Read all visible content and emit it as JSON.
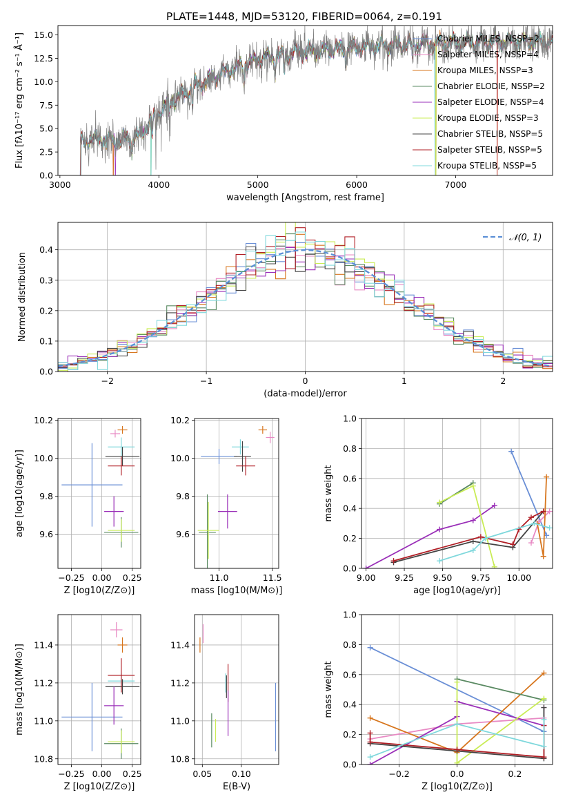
{
  "figure_title": "PLATE=1448, MJD=53120, FIBERID=0064, z=0.191",
  "chart_data": [
    {
      "id": "spectrum",
      "type": "line",
      "title": "PLATE=1448, MJD=53120, FIBERID=0064, z=0.191",
      "xlabel": "wavelength [Angstrom, rest frame]",
      "ylabel": "Flux [fλ10⁻¹⁷ erg cm⁻² s⁻¹ Å⁻¹]",
      "xlim": [
        2980,
        7980
      ],
      "ylim": [
        0,
        16
      ],
      "xticks": [
        3000,
        4000,
        5000,
        6000,
        7000
      ],
      "yticks": [
        0.0,
        2.5,
        5.0,
        7.5,
        10.0,
        12.5,
        15.0
      ],
      "grid": false,
      "legend_position": "top-right",
      "continuum_knots": {
        "x": [
          3200,
          3300,
          3600,
          3800,
          3950,
          4100,
          4400,
          4700,
          5000,
          5300,
          5600,
          5900,
          6200,
          6500,
          6800,
          7200,
          7600,
          7980
        ],
        "y": [
          3.4,
          3.9,
          3.7,
          4.2,
          6.2,
          7.8,
          9.7,
          11.2,
          12.4,
          13.0,
          13.3,
          13.6,
          13.8,
          14.0,
          14.1,
          14.2,
          14.3,
          14.3
        ]
      },
      "series": [
        {
          "name": "Chabrier MILES, NSSP=2",
          "color": "#6a8fd6"
        },
        {
          "name": "Salpeter MILES, NSSP=4",
          "color": "#e88ac4"
        },
        {
          "name": "Kroupa MILES, NSSP=3",
          "color": "#d7761e"
        },
        {
          "name": "Chabrier ELODIE, NSSP=2",
          "color": "#5a8a62"
        },
        {
          "name": "Salpeter ELODIE, NSSP=4",
          "color": "#9a2fb8"
        },
        {
          "name": "Kroupa ELODIE, NSSP=3",
          "color": "#c9ec55"
        },
        {
          "name": "Chabrier STELIB, NSSP=5",
          "color": "#444444"
        },
        {
          "name": "Salpeter STELIB, NSSP=5",
          "color": "#b11f26"
        },
        {
          "name": "Kroupa STELIB, NSSP=5",
          "color": "#7fd8dc"
        }
      ]
    },
    {
      "id": "residual-histogram",
      "type": "histogram",
      "xlabel": "(data-model)/error",
      "ylabel": "Normed distribution",
      "xlim": [
        -2.5,
        2.5
      ],
      "ylim": [
        0,
        0.49
      ],
      "xticks": [
        -2,
        -1,
        0,
        1,
        2
      ],
      "yticks": [
        0.0,
        0.1,
        0.2,
        0.3,
        0.4
      ],
      "bin_width": 0.1,
      "grid": true,
      "legend_position": "top-right",
      "reference_curve": {
        "name": "𝒩(0, 1)",
        "color": "#5b8fd6",
        "style": "dashed"
      }
    },
    {
      "id": "age-vs-z",
      "type": "errorbar",
      "xlabel": "Z [log10(Z/Z⊙)]",
      "ylabel": "age  [log10(age/yr)]",
      "xlim": [
        -0.36,
        0.32
      ],
      "ylim": [
        9.42,
        10.21
      ],
      "xticks": [
        -0.25,
        0.0,
        0.25
      ],
      "yticks": [
        9.6,
        9.8,
        10.0,
        10.2
      ],
      "grid": true,
      "points": [
        {
          "color": "#6a8fd6",
          "x": -0.08,
          "y": 9.86,
          "xerr": 0.25,
          "yerr": 0.22
        },
        {
          "color": "#e88ac4",
          "x": 0.11,
          "y": 10.13,
          "xerr": 0.04,
          "yerr": 0.02
        },
        {
          "color": "#d7761e",
          "x": 0.17,
          "y": 10.15,
          "xerr": 0.04,
          "yerr": 0.02
        },
        {
          "color": "#7fd8dc",
          "x": 0.16,
          "y": 10.06,
          "xerr": 0.11,
          "yerr": 0.05
        },
        {
          "color": "#444444",
          "x": 0.17,
          "y": 10.01,
          "xerr": 0.14,
          "yerr": 0.05
        },
        {
          "color": "#b11f26",
          "x": 0.16,
          "y": 9.96,
          "xerr": 0.11,
          "yerr": 0.05
        },
        {
          "color": "#9a2fb8",
          "x": 0.1,
          "y": 9.72,
          "xerr": 0.08,
          "yerr": 0.08
        },
        {
          "color": "#5a8a62",
          "x": 0.16,
          "y": 9.61,
          "xerr": 0.14,
          "yerr": 0.08
        },
        {
          "color": "#c9ec55",
          "x": 0.16,
          "y": 9.62,
          "xerr": 0.11,
          "yerr": 0.06
        }
      ]
    },
    {
      "id": "age-vs-mass",
      "type": "errorbar",
      "xlabel": "mass [log10(M/M⊙)]",
      "ylabel": "",
      "xlim": [
        10.77,
        11.56
      ],
      "ylim": [
        9.42,
        10.21
      ],
      "xticks": [
        11.0,
        11.5
      ],
      "yticks": [
        9.6,
        9.8,
        10.0,
        10.2
      ],
      "grid": true,
      "points": [
        {
          "color": "#6a8fd6",
          "x": 11.0,
          "y": 10.01,
          "xerr": 0.17,
          "yerr": 0.04
        },
        {
          "color": "#e88ac4",
          "x": 11.48,
          "y": 10.11,
          "xerr": 0.04,
          "yerr": 0.03
        },
        {
          "color": "#d7761e",
          "x": 11.41,
          "y": 10.15,
          "xerr": 0.04,
          "yerr": 0.02
        },
        {
          "color": "#7fd8dc",
          "x": 11.2,
          "y": 10.06,
          "xerr": 0.08,
          "yerr": 0.04
        },
        {
          "color": "#444444",
          "x": 11.22,
          "y": 10.01,
          "xerr": 0.08,
          "yerr": 0.08
        },
        {
          "color": "#b11f26",
          "x": 11.25,
          "y": 9.96,
          "xerr": 0.09,
          "yerr": 0.05
        },
        {
          "color": "#9a2fb8",
          "x": 11.08,
          "y": 9.72,
          "xerr": 0.09,
          "yerr": 0.09
        },
        {
          "color": "#5a8a62",
          "x": 10.89,
          "y": 9.61,
          "xerr": 0.08,
          "yerr": 0.2
        },
        {
          "color": "#c9ec55",
          "x": 10.9,
          "y": 9.62,
          "xerr": 0.1,
          "yerr": 0.15
        }
      ]
    },
    {
      "id": "weight-vs-age",
      "type": "line",
      "xlabel": "age  [log10(age/yr)]",
      "ylabel": "mass weight",
      "xlim": [
        8.97,
        10.22
      ],
      "ylim": [
        0,
        1
      ],
      "xticks": [
        9.0,
        9.25,
        9.5,
        9.75,
        10.0
      ],
      "yticks": [
        0.0,
        0.2,
        0.4,
        0.6,
        0.8,
        1.0
      ],
      "grid": true,
      "series": [
        {
          "color": "#6a8fd6",
          "x": [
            9.95,
            10.18
          ],
          "y": [
            0.78,
            0.22
          ]
        },
        {
          "color": "#e88ac4",
          "x": [
            10.08,
            10.13,
            10.2
          ],
          "y": [
            0.17,
            0.31,
            0.38
          ]
        },
        {
          "color": "#d7761e",
          "x": [
            10.12,
            10.16,
            10.18
          ],
          "y": [
            0.3,
            0.08,
            0.61
          ]
        },
        {
          "color": "#5a8a62",
          "x": [
            9.48,
            9.7
          ],
          "y": [
            0.43,
            0.57
          ]
        },
        {
          "color": "#9a2fb8",
          "x": [
            9.0,
            9.48,
            9.7,
            9.84
          ],
          "y": [
            0.0,
            0.26,
            0.32,
            0.42
          ]
        },
        {
          "color": "#c9ec55",
          "x": [
            9.48,
            9.7,
            9.84
          ],
          "y": [
            0.44,
            0.55,
            0.01
          ]
        },
        {
          "color": "#444444",
          "x": [
            9.18,
            9.7,
            9.96,
            10.16
          ],
          "y": [
            0.04,
            0.18,
            0.14,
            0.38
          ]
        },
        {
          "color": "#b11f26",
          "x": [
            9.18,
            9.75,
            9.96,
            10.0,
            10.08,
            10.16
          ],
          "y": [
            0.05,
            0.21,
            0.16,
            0.26,
            0.34,
            0.38
          ]
        },
        {
          "color": "#7fd8dc",
          "x": [
            9.48,
            9.7,
            9.78,
            10.1,
            10.2
          ],
          "y": [
            0.05,
            0.12,
            0.2,
            0.3,
            0.27
          ]
        }
      ]
    },
    {
      "id": "mass-vs-z",
      "type": "errorbar",
      "xlabel": "Z [log10(Z/Z⊙)]",
      "ylabel": "mass [log10(M/M⊙)]",
      "xlim": [
        -0.36,
        0.32
      ],
      "ylim": [
        10.77,
        11.56
      ],
      "xticks": [
        -0.25,
        0.0,
        0.25
      ],
      "yticks": [
        10.8,
        11.0,
        11.2,
        11.4
      ],
      "grid": true,
      "points": [
        {
          "color": "#6a8fd6",
          "x": -0.08,
          "y": 11.02,
          "xerr": 0.25,
          "yerr": 0.18
        },
        {
          "color": "#e88ac4",
          "x": 0.12,
          "y": 11.48,
          "xerr": 0.05,
          "yerr": 0.04
        },
        {
          "color": "#d7761e",
          "x": 0.17,
          "y": 11.4,
          "xerr": 0.04,
          "yerr": 0.04
        },
        {
          "color": "#7fd8dc",
          "x": 0.16,
          "y": 11.21,
          "xerr": 0.11,
          "yerr": 0.04
        },
        {
          "color": "#444444",
          "x": 0.17,
          "y": 11.18,
          "xerr": 0.14,
          "yerr": 0.04
        },
        {
          "color": "#b11f26",
          "x": 0.16,
          "y": 11.24,
          "xerr": 0.11,
          "yerr": 0.09
        },
        {
          "color": "#9a2fb8",
          "x": 0.1,
          "y": 11.08,
          "xerr": 0.08,
          "yerr": 0.1
        },
        {
          "color": "#5a8a62",
          "x": 0.16,
          "y": 10.88,
          "xerr": 0.14,
          "yerr": 0.08
        },
        {
          "color": "#c9ec55",
          "x": 0.16,
          "y": 10.89,
          "xerr": 0.11,
          "yerr": 0.06
        }
      ]
    },
    {
      "id": "mass-vs-ebv",
      "type": "errorbar",
      "xlabel": "E(B-V)",
      "ylabel": "",
      "xlim": [
        0.04,
        0.148
      ],
      "ylim": [
        10.77,
        11.56
      ],
      "xticks": [
        0.05,
        0.1
      ],
      "yticks": [
        10.8,
        11.0,
        11.2,
        11.4
      ],
      "grid": true,
      "points": [
        {
          "color": "#6a8fd6",
          "x": 0.144,
          "y": 11.02,
          "xerr": 0.0,
          "yerr": 0.18
        },
        {
          "color": "#e88ac4",
          "x": 0.051,
          "y": 11.46,
          "xerr": 0.0,
          "yerr": 0.05
        },
        {
          "color": "#d7761e",
          "x": 0.047,
          "y": 11.4,
          "xerr": 0.0,
          "yerr": 0.04
        },
        {
          "color": "#7fd8dc",
          "x": 0.08,
          "y": 11.2,
          "xerr": 0.0,
          "yerr": 0.05
        },
        {
          "color": "#444444",
          "x": 0.081,
          "y": 11.18,
          "xerr": 0.0,
          "yerr": 0.06
        },
        {
          "color": "#b11f26",
          "x": 0.083,
          "y": 11.2,
          "xerr": 0.0,
          "yerr": 0.1
        },
        {
          "color": "#9a2fb8",
          "x": 0.083,
          "y": 11.04,
          "xerr": 0.0,
          "yerr": 0.12
        },
        {
          "color": "#5a8a62",
          "x": 0.062,
          "y": 10.95,
          "xerr": 0.0,
          "yerr": 0.09
        },
        {
          "color": "#c9ec55",
          "x": 0.067,
          "y": 10.95,
          "xerr": 0.0,
          "yerr": 0.06
        }
      ]
    },
    {
      "id": "weight-vs-z",
      "type": "line",
      "xlabel": "Z [log10(Z/Z⊙)]",
      "ylabel": "mass weight",
      "xlim": [
        -0.33,
        0.33
      ],
      "ylim": [
        0,
        1
      ],
      "xticks": [
        -0.2,
        0.0,
        0.2
      ],
      "yticks": [
        0.0,
        0.2,
        0.4,
        0.6,
        0.8,
        1.0
      ],
      "grid": true,
      "series": [
        {
          "color": "#6a8fd6",
          "x": [
            -0.3,
            0.3
          ],
          "y": [
            0.78,
            0.22
          ]
        },
        {
          "color": "#e88ac4",
          "x": [
            -0.3,
            0.0,
            0.3,
            0.3
          ],
          "y": [
            0.17,
            0.27,
            0.31,
            0.38
          ]
        },
        {
          "color": "#d7761e",
          "x": [
            -0.3,
            0.0,
            0.3
          ],
          "y": [
            0.31,
            0.08,
            0.61
          ]
        },
        {
          "color": "#5a8a62",
          "x": [
            0.0,
            0.3
          ],
          "y": [
            0.57,
            0.43
          ]
        },
        {
          "color": "#9a2fb8",
          "x": [
            -0.3,
            0.0,
            0.0,
            0.3
          ],
          "y": [
            0.0,
            0.32,
            0.42,
            0.26
          ]
        },
        {
          "color": "#c9ec55",
          "x": [
            0.0,
            0.0,
            0.3
          ],
          "y": [
            0.55,
            0.01,
            0.44
          ]
        },
        {
          "color": "#444444",
          "x": [
            -0.3,
            0.0,
            0.3,
            0.3
          ],
          "y": [
            0.14,
            0.09,
            0.04,
            0.38
          ]
        },
        {
          "color": "#b11f26",
          "x": [
            -0.3,
            -0.3,
            0.0,
            0.3,
            0.3
          ],
          "y": [
            0.21,
            0.15,
            0.1,
            0.05,
            0.26
          ]
        },
        {
          "color": "#7fd8dc",
          "x": [
            -0.3,
            0.0,
            0.3,
            0.3
          ],
          "y": [
            0.05,
            0.27,
            0.12,
            0.3
          ]
        }
      ]
    }
  ]
}
